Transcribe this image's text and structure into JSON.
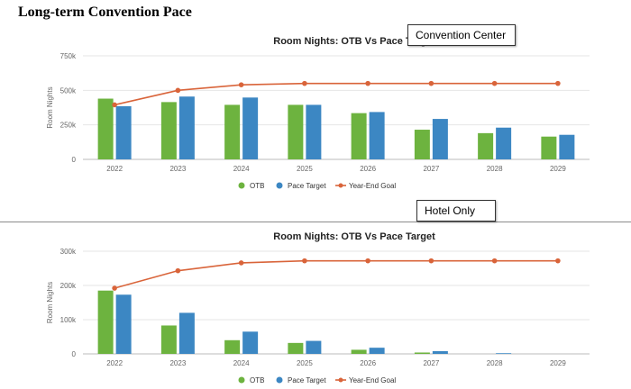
{
  "page_title": "Long-term Convention Pace",
  "callouts": [
    "Convention Center",
    "Hotel Only"
  ],
  "colors": {
    "otb": "#6db33f",
    "pace": "#3c87c3",
    "goal": "#d9643a",
    "grid": "#e6e6e6"
  },
  "chart_data": [
    {
      "type": "bar",
      "title": "Room Nights: OTB Vs Pace Target",
      "ylabel": "Room Nights",
      "categories": [
        "2022",
        "2023",
        "2024",
        "2025",
        "2026",
        "2027",
        "2028",
        "2029"
      ],
      "yticks": [
        0,
        250000,
        500000,
        750000
      ],
      "ytick_labels": [
        "0",
        "250k",
        "500k",
        "750k"
      ],
      "ylim": [
        0,
        750000
      ],
      "series": [
        {
          "name": "OTB",
          "kind": "bar",
          "values": [
            440000,
            415000,
            395000,
            395000,
            335000,
            215000,
            190000,
            165000
          ]
        },
        {
          "name": "Pace Target",
          "kind": "bar",
          "values": [
            385000,
            455000,
            448000,
            395000,
            343000,
            293000,
            230000,
            178000
          ]
        },
        {
          "name": "Year-End Goal",
          "kind": "line",
          "values": [
            395000,
            500000,
            540000,
            550000,
            550000,
            550000,
            550000,
            550000
          ]
        }
      ],
      "legend": "bottom-center"
    },
    {
      "type": "bar",
      "title": "Room Nights: OTB Vs Pace Target",
      "ylabel": "Room Nights",
      "categories": [
        "2022",
        "2023",
        "2024",
        "2025",
        "2026",
        "2027",
        "2028",
        "2029"
      ],
      "yticks": [
        0,
        100000,
        200000,
        300000
      ],
      "ytick_labels": [
        "0",
        "100k",
        "200k",
        "300k"
      ],
      "ylim": [
        0,
        300000
      ],
      "series": [
        {
          "name": "OTB",
          "kind": "bar",
          "values": [
            185000,
            83000,
            40000,
            32000,
            12000,
            4000,
            0,
            0
          ]
        },
        {
          "name": "Pace Target",
          "kind": "bar",
          "values": [
            173000,
            120000,
            65000,
            38000,
            18000,
            8000,
            2000,
            0
          ]
        },
        {
          "name": "Year-End Goal",
          "kind": "line",
          "values": [
            192000,
            243000,
            266000,
            272000,
            272000,
            272000,
            272000,
            272000
          ]
        }
      ],
      "legend": "bottom-center"
    }
  ]
}
